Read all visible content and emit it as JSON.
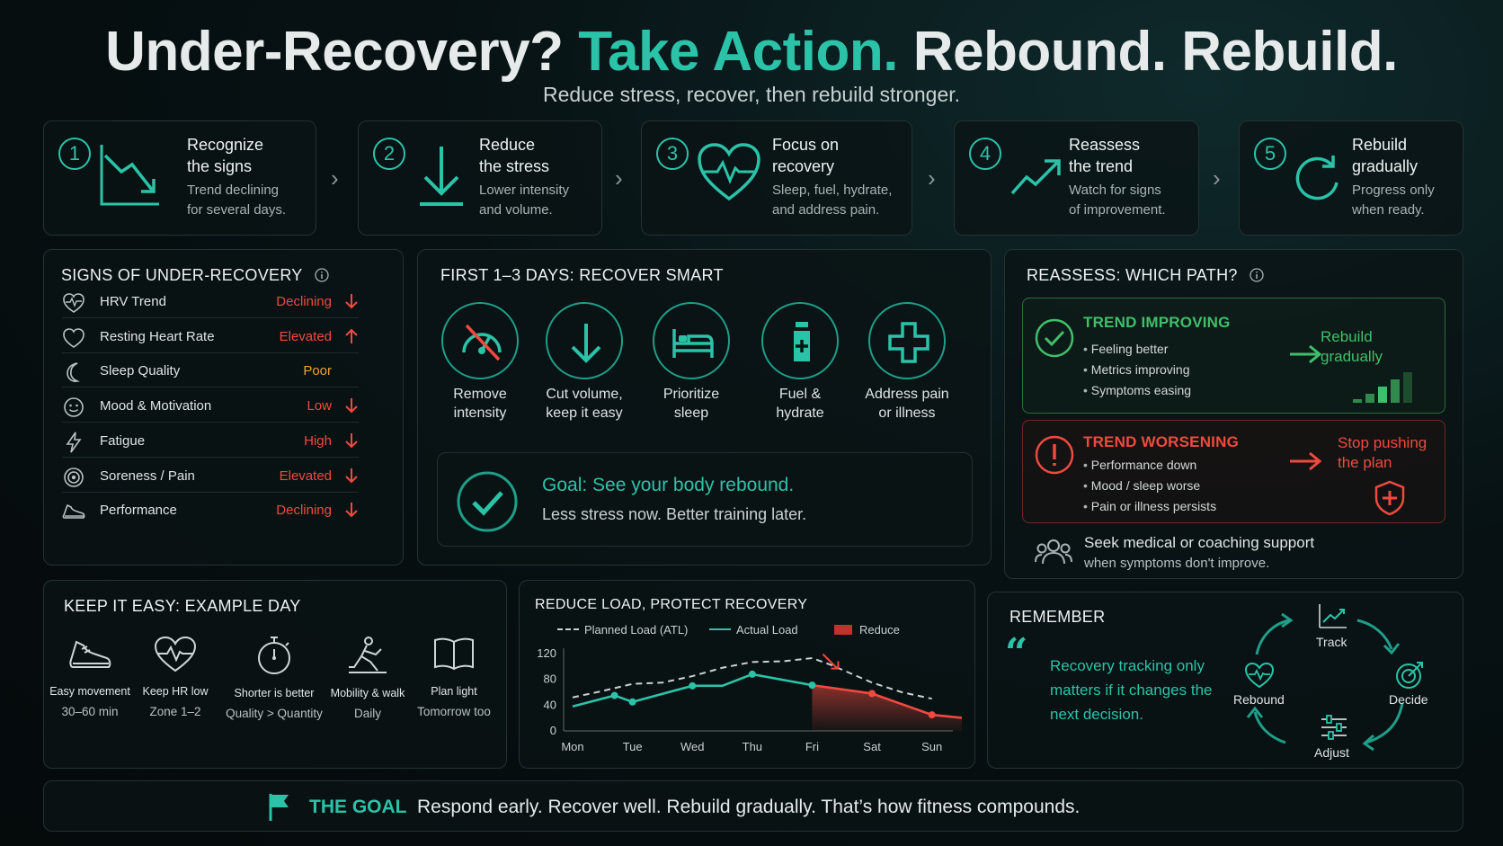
{
  "header": {
    "title_part1": "Under-Recovery?",
    "title_part2": "Take Action.",
    "title_part3": "Rebound. Rebuild.",
    "subtitle": "Reduce stress, recover, then rebuild stronger."
  },
  "steps": [
    {
      "num": "1",
      "title1": "Recognize",
      "title2": "the signs",
      "desc1": "Trend declining",
      "desc2": "for several days.",
      "icon": "trend-down-icon"
    },
    {
      "num": "2",
      "title1": "Reduce",
      "title2": "the stress",
      "desc1": "Lower intensity",
      "desc2": "and volume.",
      "icon": "arrow-down-icon"
    },
    {
      "num": "3",
      "title1": "Focus on",
      "title2": "recovery",
      "desc1": "Sleep, fuel, hydrate,",
      "desc2": "and address pain.",
      "icon": "heart-pulse-icon"
    },
    {
      "num": "4",
      "title1": "Reassess",
      "title2": "the trend",
      "desc1": "Watch for signs",
      "desc2": "of improvement.",
      "icon": "trend-up-icon"
    },
    {
      "num": "5",
      "title1": "Rebuild",
      "title2": "gradually",
      "desc1": "Progress only",
      "desc2": "when ready.",
      "icon": "refresh-icon"
    }
  ],
  "signs": {
    "title": "SIGNS OF UNDER-RECOVERY",
    "info_icon": "info-icon",
    "rows": [
      {
        "label": "HRV Trend",
        "value": "Declining",
        "status": "down",
        "icon": "heart-pulse-icon"
      },
      {
        "label": "Resting Heart Rate",
        "value": "Elevated",
        "status": "up",
        "icon": "heart-icon"
      },
      {
        "label": "Sleep Quality",
        "value": "Poor",
        "status": "none",
        "icon": "moon-icon"
      },
      {
        "label": "Mood & Motivation",
        "value": "Low",
        "status": "down",
        "icon": "smiley-icon"
      },
      {
        "label": "Fatigue",
        "value": "High",
        "status": "down",
        "icon": "lightning-icon"
      },
      {
        "label": "Soreness / Pain",
        "value": "Elevated",
        "status": "down",
        "icon": "target-icon"
      },
      {
        "label": "Performance",
        "value": "Declining",
        "status": "down",
        "icon": "shoe-icon"
      }
    ],
    "colors": {
      "bad": "#ef4a3f",
      "warn": "#f0a22b"
    }
  },
  "recover": {
    "title": "FIRST 1–3 DAYS: RECOVER SMART",
    "items": [
      {
        "line1": "Remove",
        "line2": "intensity",
        "icon": "speedometer-off-icon"
      },
      {
        "line1": "Cut volume,",
        "line2": "keep it easy",
        "icon": "arrow-down-icon"
      },
      {
        "line1": "Prioritize",
        "line2": "sleep",
        "icon": "bed-icon"
      },
      {
        "line1": "Fuel &",
        "line2": "hydrate",
        "icon": "bottle-icon"
      },
      {
        "line1": "Address pain",
        "line2": "or illness",
        "icon": "medical-cross-icon"
      }
    ],
    "goal_title": "Goal: See your body rebound.",
    "goal_sub": "Less stress now. Better training later."
  },
  "reassess": {
    "title": "REASSESS: WHICH PATH?",
    "improving": {
      "title": "TREND IMPROVING",
      "bullets": [
        "Feeling better",
        "Metrics improving",
        "Symptoms easing"
      ],
      "result1": "Rebuild",
      "result2": "gradually"
    },
    "worsening": {
      "title": "TREND WORSENING",
      "bullets": [
        "Performance down",
        "Mood / sleep worse",
        "Pain or illness persists"
      ],
      "result1": "Stop pushing",
      "result2": "the plan"
    },
    "support1": "Seek medical or coaching support",
    "support2": "when symptoms don't improve.",
    "colors": {
      "good": "#3fbf6a",
      "bad": "#ef4a3f"
    }
  },
  "easy_day": {
    "title": "KEEP IT EASY: EXAMPLE DAY",
    "items": [
      {
        "label": "Easy movement",
        "sub": "30–60 min",
        "icon": "shoe-icon"
      },
      {
        "label": "Keep HR low",
        "sub": "Zone 1–2",
        "icon": "heart-pulse-icon"
      },
      {
        "label": "Shorter is better",
        "sub": "Quality > Quantity",
        "icon": "stopwatch-icon"
      },
      {
        "label": "Mobility & walk",
        "sub": "Daily",
        "icon": "stretching-icon"
      },
      {
        "label": "Plan light",
        "sub": "Tomorrow too",
        "icon": "book-icon"
      }
    ]
  },
  "load_chart": {
    "title": "REDUCE LOAD, PROTECT RECOVERY",
    "legend": {
      "planned": "Planned Load (ATL)",
      "actual": "Actual Load",
      "reduce": "Reduce"
    }
  },
  "chart_data": {
    "type": "line",
    "title": "REDUCE LOAD, PROTECT RECOVERY",
    "x": [
      "Mon",
      "Tue",
      "Wed",
      "Thu",
      "Fri",
      "Sat",
      "Sun"
    ],
    "yticks": [
      0,
      40,
      80,
      120
    ],
    "ylim": [
      0,
      120
    ],
    "series": [
      {
        "name": "Planned Load (ATL)",
        "style": "dashed",
        "color": "#c9d1d1",
        "points": [
          [
            0,
            52
          ],
          [
            0.5,
            62
          ],
          [
            1,
            73
          ],
          [
            1.5,
            75
          ],
          [
            2,
            85
          ],
          [
            2.5,
            98
          ],
          [
            3,
            107
          ],
          [
            3.5,
            108
          ],
          [
            4,
            113
          ],
          [
            4.3,
            103
          ],
          [
            5,
            75
          ],
          [
            5.5,
            60
          ],
          [
            6,
            50
          ]
        ]
      },
      {
        "name": "Actual Load",
        "style": "solid",
        "color": "#2bc3a8",
        "points": [
          [
            0,
            38
          ],
          [
            0.7,
            55
          ],
          [
            1,
            45
          ],
          [
            2,
            70
          ],
          [
            2.5,
            70
          ],
          [
            3,
            88
          ],
          [
            4,
            71
          ]
        ]
      },
      {
        "name": "Reduce",
        "style": "solid",
        "color": "#ef4a3f",
        "points": [
          [
            4,
            71
          ],
          [
            5,
            58
          ],
          [
            6,
            25
          ],
          [
            6.75,
            18
          ]
        ]
      }
    ],
    "reduce_region": {
      "from": "Fri",
      "color": "#ef4a3f"
    },
    "grid": false,
    "legend_position": "top"
  },
  "remember": {
    "title": "REMEMBER",
    "quote": "Recovery tracking only matters if it changes the next decision.",
    "cycle": [
      "Track",
      "Decide",
      "Adjust",
      "Rebound"
    ]
  },
  "footer": {
    "label": "THE GOAL",
    "text": "Respond early. Recover well. Rebuild gradually. That’s how fitness compounds."
  },
  "colors": {
    "accent": "#2bc3a8",
    "bad": "#ef4a3f",
    "good": "#3fbf6a",
    "warn": "#f0a22b"
  }
}
